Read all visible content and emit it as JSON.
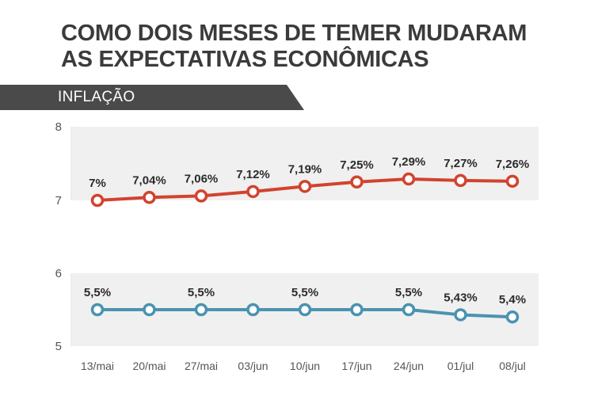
{
  "title_lines": [
    "COMO DOIS MESES DE TEMER MUDARAM",
    "AS EXPECTATIVAS ECONÔMICAS"
  ],
  "section_label": "INFLAÇÃO",
  "colors": {
    "band": "#f0f0f0",
    "banner": "#4a4a4a",
    "series_top": "#d2432f",
    "series_bottom": "#4a93b0",
    "text": "#3b3b3b"
  },
  "chart_data": {
    "type": "line",
    "title": "COMO DOIS MESES DE TEMER MUDARAM AS EXPECTATIVAS ECONÔMICAS",
    "subtitle": "INFLAÇÃO",
    "categories": [
      "13/mai",
      "20/mai",
      "27/mai",
      "03/jun",
      "10/jun",
      "17/jun",
      "24/jun",
      "01/jul",
      "08/jul"
    ],
    "panels": [
      {
        "ylim": [
          7,
          8
        ],
        "yticks": [
          "8",
          "7"
        ],
        "series": [
          {
            "name": "series_top",
            "color": "#d2432f",
            "values": [
              7,
              7.04,
              7.06,
              7.12,
              7.19,
              7.25,
              7.29,
              7.27,
              7.26
            ],
            "labels": [
              "7%",
              "7,04%",
              "7,06%",
              "7,12%",
              "7,19%",
              "7,25%",
              "7,29%",
              "7,27%",
              "7,26%"
            ]
          }
        ]
      },
      {
        "ylim": [
          5,
          6
        ],
        "yticks": [
          "6",
          "5"
        ],
        "series": [
          {
            "name": "series_bottom",
            "color": "#4a93b0",
            "values": [
              5.5,
              5.5,
              5.5,
              5.5,
              5.5,
              5.5,
              5.5,
              5.43,
              5.4
            ],
            "labels": [
              "5,5%",
              "",
              "5,5%",
              "",
              "5,5%",
              "",
              "5,5%",
              "5,43%",
              "5,4%"
            ]
          }
        ]
      }
    ],
    "xlabel": "",
    "ylabel": "",
    "grid": false
  }
}
